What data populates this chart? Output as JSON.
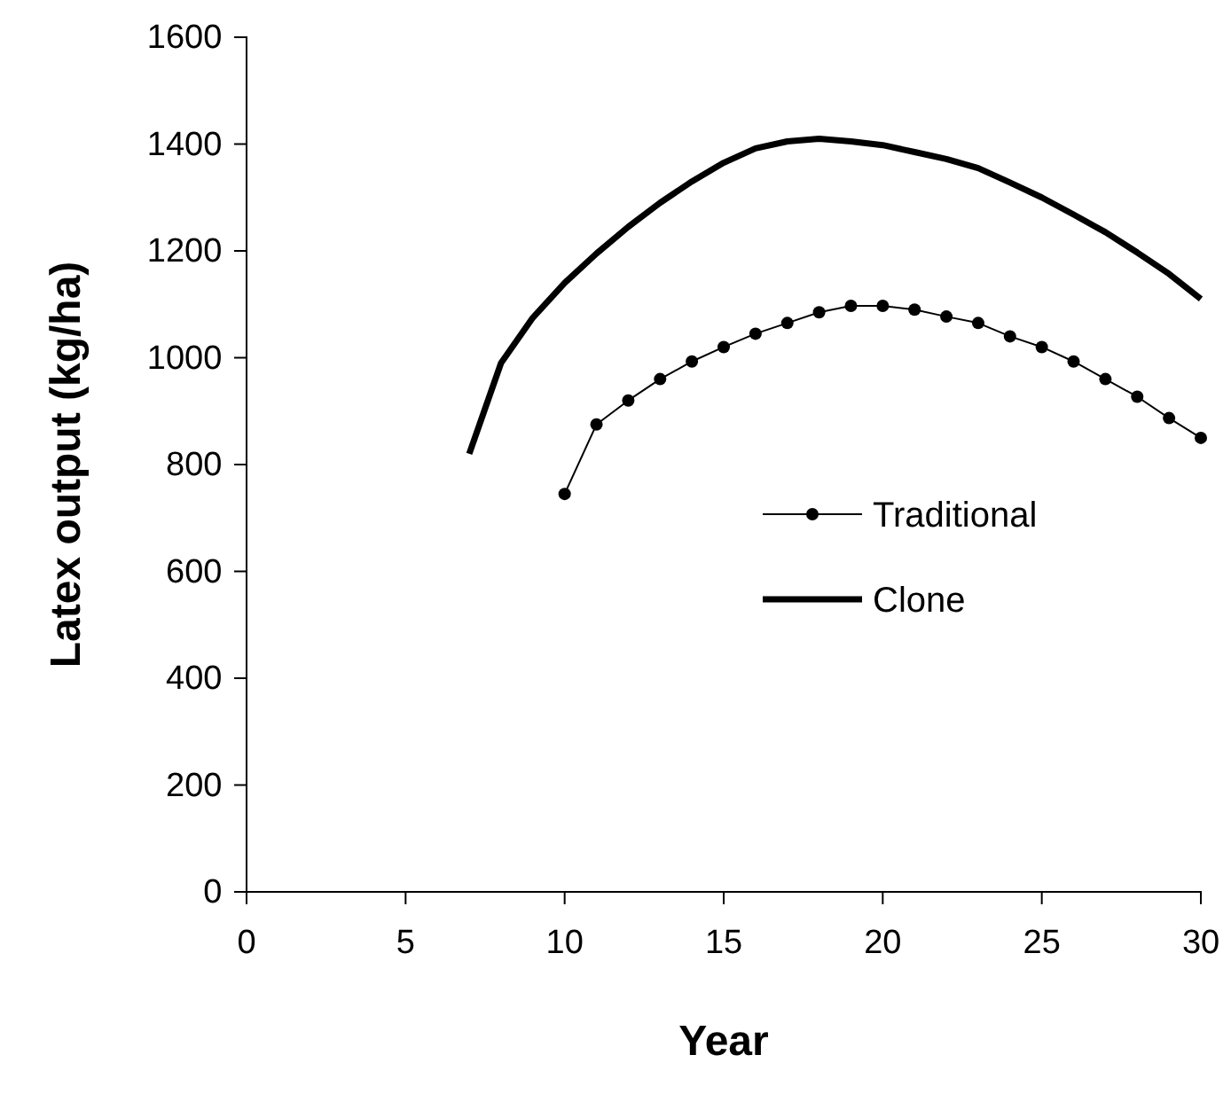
{
  "chart_data": {
    "type": "line",
    "xlabel": "Year",
    "ylabel": "Latex output (kg/ha)",
    "xlim": [
      0,
      30
    ],
    "xticks": [
      0,
      5,
      10,
      15,
      20,
      25,
      30
    ],
    "ylim": [
      0,
      1600
    ],
    "yticks": [
      0,
      200,
      400,
      600,
      800,
      1000,
      1200,
      1400,
      1600
    ],
    "legend": "right",
    "grid": false,
    "series": [
      {
        "name": "Traditional",
        "color": "#000000",
        "marker": "circle",
        "x": [
          10,
          11,
          12,
          13,
          14,
          15,
          16,
          17,
          18,
          19,
          20,
          21,
          22,
          23,
          24,
          25,
          26,
          27,
          28,
          29,
          30
        ],
        "values": [
          745,
          875,
          920,
          960,
          993,
          1020,
          1045,
          1065,
          1085,
          1097,
          1097,
          1090,
          1077,
          1065,
          1040,
          1020,
          993,
          960,
          927,
          887,
          850
        ]
      },
      {
        "name": "Clone",
        "color": "#000000",
        "marker": "none",
        "x": [
          7,
          8,
          9,
          10,
          11,
          12,
          13,
          14,
          15,
          16,
          17,
          18,
          19,
          20,
          21,
          22,
          23,
          24,
          25,
          26,
          27,
          28,
          29,
          30
        ],
        "values": [
          820,
          990,
          1075,
          1140,
          1195,
          1245,
          1290,
          1330,
          1365,
          1392,
          1405,
          1410,
          1405,
          1398,
          1385,
          1372,
          1355,
          1328,
          1300,
          1268,
          1235,
          1197,
          1157,
          1110
        ]
      }
    ]
  }
}
